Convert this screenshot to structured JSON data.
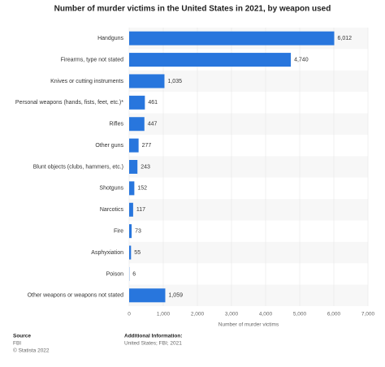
{
  "chart_data": {
    "type": "barh",
    "title": "Number of murder victims in the United States in 2021, by weapon used",
    "categories": [
      "Handguns",
      "Firearms, type not stated",
      "Knives or cutting instruments",
      "Personal weapons (hands, fists, feet, etc.)*",
      "Rifles",
      "Other guns",
      "Blunt objects (clubs, hammers, etc.)",
      "Shotguns",
      "Narcotics",
      "Fire",
      "Asphyxiation",
      "Poison",
      "Other weapons or weapons not stated"
    ],
    "values": [
      6012,
      4740,
      1035,
      461,
      447,
      277,
      243,
      152,
      117,
      73,
      55,
      6,
      1059
    ],
    "value_labels": [
      "6,012",
      "4,740",
      "1,035",
      "461",
      "447",
      "277",
      "243",
      "152",
      "117",
      "73",
      "55",
      "6",
      "1,059"
    ],
    "color": "#2876dd",
    "xlim": [
      0,
      7000
    ],
    "xticks": [
      0,
      {
        "value": 1000,
        "label": "1,000"
      },
      {
        "value": 2000,
        "label": "2,000"
      },
      {
        "value": 3000,
        "label": "3,000"
      },
      {
        "value": 4000,
        "label": "4,000"
      },
      {
        "value": 5000,
        "label": "5,000"
      },
      {
        "value": 6000,
        "label": "6,000"
      },
      {
        "value": 7000,
        "label": "7,000"
      }
    ],
    "xlabel": "Number of murder victims",
    "grid": true,
    "source_heading": "Source",
    "source": "FBI",
    "copyright": "© Statista 2022",
    "info_heading": "Additional Information:",
    "info": "United States; FBI; 2021"
  }
}
